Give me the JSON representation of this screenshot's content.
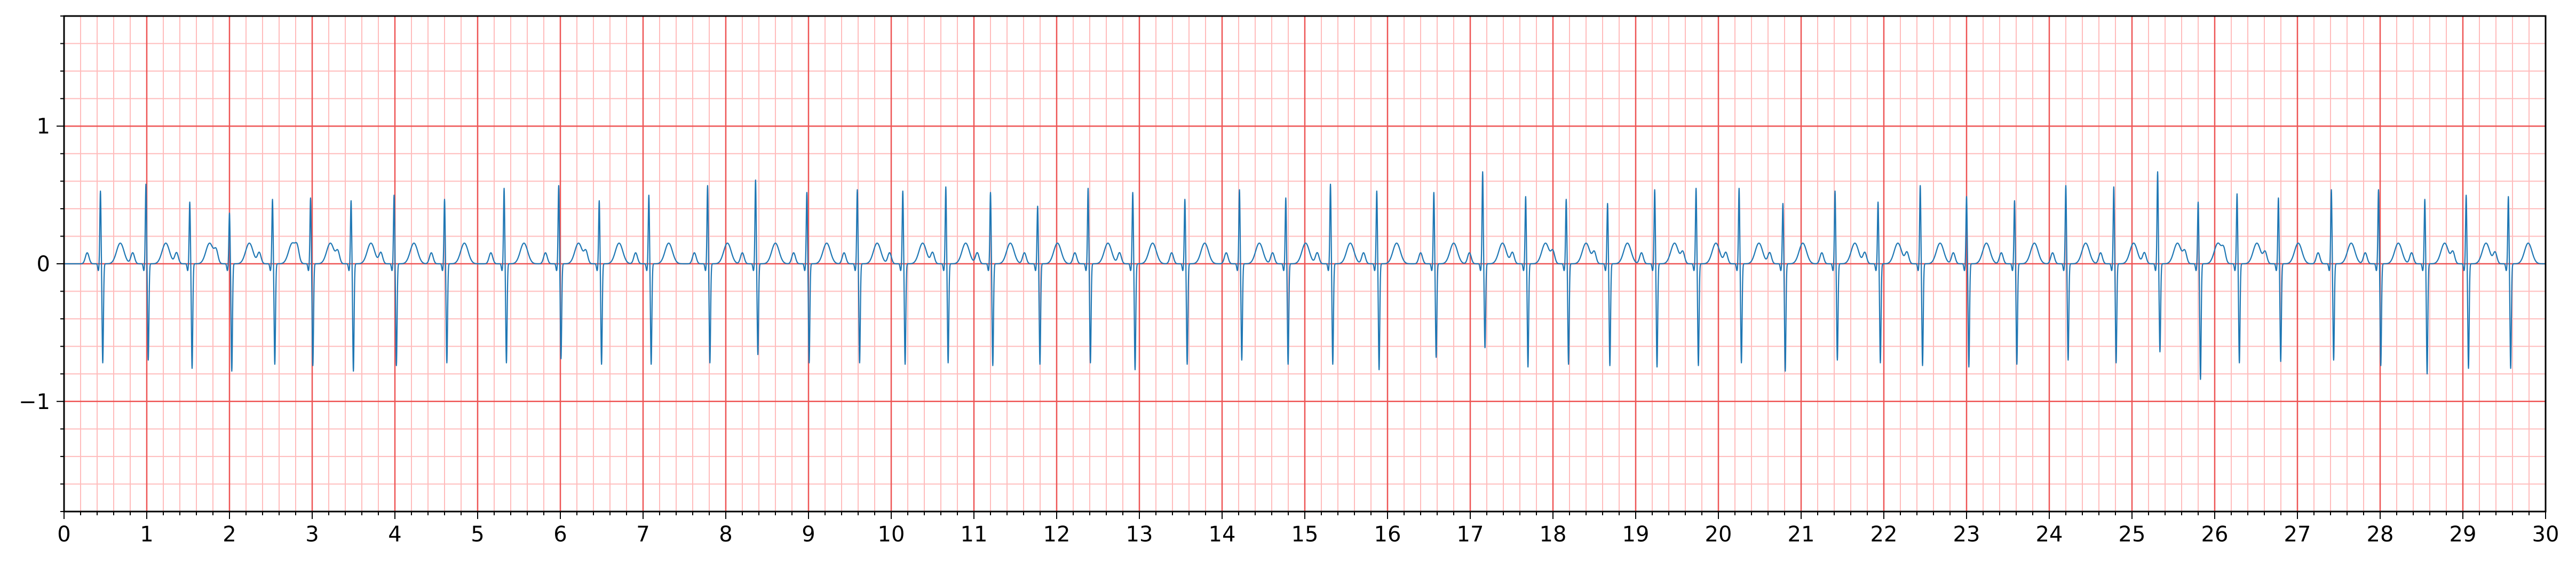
{
  "chart_data": {
    "type": "line",
    "title": "",
    "xlabel": "",
    "ylabel": "",
    "xlim": [
      0,
      30
    ],
    "ylim": [
      -1.8,
      1.8
    ],
    "x_ticks": [
      0,
      1,
      2,
      3,
      4,
      5,
      6,
      7,
      8,
      9,
      10,
      11,
      12,
      13,
      14,
      15,
      16,
      17,
      18,
      19,
      20,
      21,
      22,
      23,
      24,
      25,
      26,
      27,
      28,
      29,
      30
    ],
    "x_tick_labels": [
      "0",
      "1",
      "2",
      "3",
      "4",
      "5",
      "6",
      "7",
      "8",
      "9",
      "10",
      "11",
      "12",
      "13",
      "14",
      "15",
      "16",
      "17",
      "18",
      "19",
      "20",
      "21",
      "22",
      "23",
      "24",
      "25",
      "26",
      "27",
      "28",
      "29",
      "30"
    ],
    "y_ticks": [
      -1,
      0,
      1
    ],
    "y_tick_labels": [
      "−1",
      "0",
      "1"
    ],
    "grid": {
      "major_x_step": 1,
      "major_y_step": 1,
      "minor_x_step": 0.2,
      "minor_y_step": 0.2,
      "visible": true
    },
    "colors": {
      "major_grid": "#ee5555",
      "minor_grid": "#ffbcbc",
      "trace": "#1f77b4",
      "axes": "#000000"
    },
    "series": [
      {
        "name": "",
        "beats": [
          {
            "t": 0.44,
            "r": 0.53,
            "s": -0.72
          },
          {
            "t": 0.99,
            "r": 0.58,
            "s": -0.7
          },
          {
            "t": 1.52,
            "r": 0.45,
            "s": -0.76
          },
          {
            "t": 2.0,
            "r": 0.37,
            "s": -0.78
          },
          {
            "t": 2.52,
            "r": 0.47,
            "s": -0.73
          },
          {
            "t": 2.98,
            "r": 0.48,
            "s": -0.74
          },
          {
            "t": 3.47,
            "r": 0.46,
            "s": -0.78
          },
          {
            "t": 3.99,
            "r": 0.5,
            "s": -0.74
          },
          {
            "t": 4.6,
            "r": 0.47,
            "s": -0.72
          },
          {
            "t": 5.32,
            "r": 0.55,
            "s": -0.72
          },
          {
            "t": 5.98,
            "r": 0.57,
            "s": -0.69
          },
          {
            "t": 6.47,
            "r": 0.46,
            "s": -0.73
          },
          {
            "t": 7.07,
            "r": 0.5,
            "s": -0.73
          },
          {
            "t": 7.78,
            "r": 0.57,
            "s": -0.72
          },
          {
            "t": 8.36,
            "r": 0.61,
            "s": -0.66
          },
          {
            "t": 8.98,
            "r": 0.52,
            "s": -0.72
          },
          {
            "t": 9.59,
            "r": 0.54,
            "s": -0.72
          },
          {
            "t": 10.14,
            "r": 0.53,
            "s": -0.73
          },
          {
            "t": 10.66,
            "r": 0.56,
            "s": -0.72
          },
          {
            "t": 11.2,
            "r": 0.52,
            "s": -0.74
          },
          {
            "t": 11.77,
            "r": 0.42,
            "s": -0.73
          },
          {
            "t": 12.38,
            "r": 0.55,
            "s": -0.72
          },
          {
            "t": 12.92,
            "r": 0.52,
            "s": -0.77
          },
          {
            "t": 13.55,
            "r": 0.47,
            "s": -0.73
          },
          {
            "t": 14.21,
            "r": 0.54,
            "s": -0.7
          },
          {
            "t": 14.77,
            "r": 0.48,
            "s": -0.73
          },
          {
            "t": 15.31,
            "r": 0.58,
            "s": -0.73
          },
          {
            "t": 15.87,
            "r": 0.53,
            "s": -0.77
          },
          {
            "t": 16.56,
            "r": 0.52,
            "s": -0.68
          },
          {
            "t": 17.15,
            "r": 0.67,
            "s": -0.61
          },
          {
            "t": 17.67,
            "r": 0.49,
            "s": -0.75
          },
          {
            "t": 18.16,
            "r": 0.47,
            "s": -0.73
          },
          {
            "t": 18.66,
            "r": 0.44,
            "s": -0.74
          },
          {
            "t": 19.23,
            "r": 0.54,
            "s": -0.75
          },
          {
            "t": 19.73,
            "r": 0.55,
            "s": -0.74
          },
          {
            "t": 20.25,
            "r": 0.55,
            "s": -0.72
          },
          {
            "t": 20.78,
            "r": 0.44,
            "s": -0.78
          },
          {
            "t": 21.41,
            "r": 0.53,
            "s": -0.7
          },
          {
            "t": 21.93,
            "r": 0.45,
            "s": -0.72
          },
          {
            "t": 22.44,
            "r": 0.57,
            "s": -0.74
          },
          {
            "t": 23.0,
            "r": 0.49,
            "s": -0.75
          },
          {
            "t": 23.58,
            "r": 0.46,
            "s": -0.73
          },
          {
            "t": 24.2,
            "r": 0.57,
            "s": -0.7
          },
          {
            "t": 24.78,
            "r": 0.56,
            "s": -0.72
          },
          {
            "t": 25.31,
            "r": 0.67,
            "s": -0.64
          },
          {
            "t": 25.8,
            "r": 0.45,
            "s": -0.84
          },
          {
            "t": 26.27,
            "r": 0.51,
            "s": -0.72
          },
          {
            "t": 26.77,
            "r": 0.48,
            "s": -0.71
          },
          {
            "t": 27.41,
            "r": 0.54,
            "s": -0.7
          },
          {
            "t": 27.98,
            "r": 0.54,
            "s": -0.74
          },
          {
            "t": 28.54,
            "r": 0.47,
            "s": -0.8
          },
          {
            "t": 29.04,
            "r": 0.5,
            "s": -0.76
          },
          {
            "t": 29.55,
            "r": 0.49,
            "s": -0.76
          }
        ]
      }
    ]
  }
}
